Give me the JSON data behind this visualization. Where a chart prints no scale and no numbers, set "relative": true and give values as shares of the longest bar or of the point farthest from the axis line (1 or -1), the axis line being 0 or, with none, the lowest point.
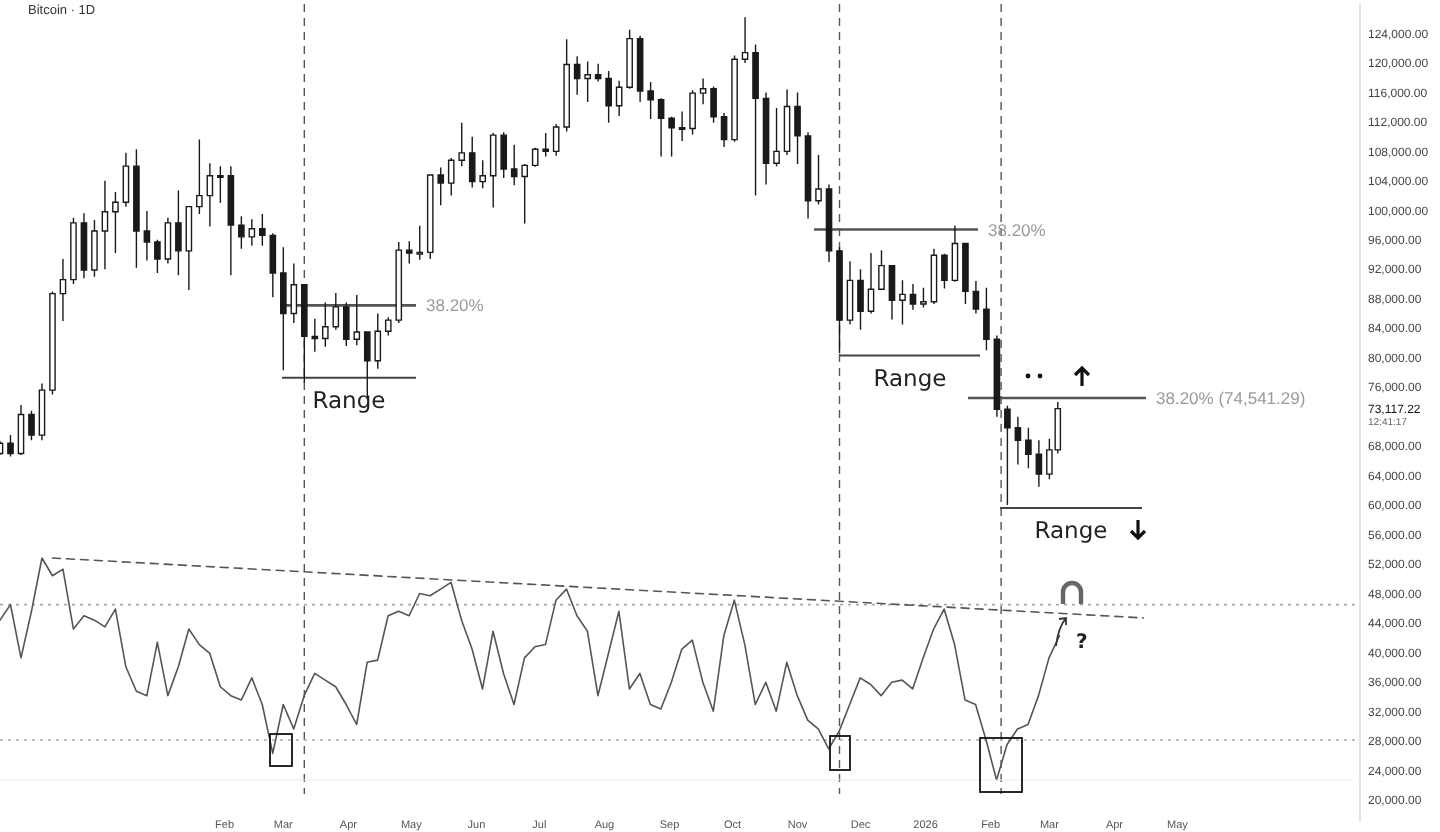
{
  "chart_data": [
    {
      "type": "candlestick",
      "title": "Bitcoin · 1D",
      "color": "#1a1a1a",
      "x": [
        "2024-10-17",
        "2024-10-22",
        "2024-10-27",
        "2024-11-01",
        "2024-11-06",
        "2024-11-11",
        "2024-11-16",
        "2024-11-21",
        "2024-11-26",
        "2024-12-01",
        "2024-12-06",
        "2024-12-11",
        "2024-12-16",
        "2024-12-21",
        "2024-12-26",
        "2024-12-31",
        "2025-01-05",
        "2025-01-10",
        "2025-01-15",
        "2025-01-20",
        "2025-01-25",
        "2025-01-30",
        "2025-02-04",
        "2025-02-09",
        "2025-02-14",
        "2025-02-19",
        "2025-02-24",
        "2025-03-01",
        "2025-03-06",
        "2025-03-11",
        "2025-03-16",
        "2025-03-21",
        "2025-03-26",
        "2025-03-31",
        "2025-04-05",
        "2025-04-10",
        "2025-04-15",
        "2025-04-20",
        "2025-04-25",
        "2025-04-30",
        "2025-05-05",
        "2025-05-10",
        "2025-05-15",
        "2025-05-20",
        "2025-05-25",
        "2025-05-30",
        "2025-06-04",
        "2025-06-09",
        "2025-06-14",
        "2025-06-19",
        "2025-06-24",
        "2025-06-29",
        "2025-07-04",
        "2025-07-09",
        "2025-07-14",
        "2025-07-19",
        "2025-07-24",
        "2025-07-29",
        "2025-08-03",
        "2025-08-08",
        "2025-08-13",
        "2025-08-18",
        "2025-08-23",
        "2025-08-28",
        "2025-09-02",
        "2025-09-07",
        "2025-09-12",
        "2025-09-17",
        "2025-09-22",
        "2025-09-27",
        "2025-10-02",
        "2025-10-07",
        "2025-10-12",
        "2025-10-17",
        "2025-10-22",
        "2025-10-27",
        "2025-11-01",
        "2025-11-06",
        "2025-11-11",
        "2025-11-16",
        "2025-11-21",
        "2025-11-26",
        "2025-12-01",
        "2025-12-06",
        "2025-12-11",
        "2025-12-16",
        "2025-12-21",
        "2025-12-26",
        "2025-12-31",
        "2026-01-05",
        "2026-01-10",
        "2026-01-15",
        "2026-01-20",
        "2026-01-25",
        "2026-01-30",
        "2026-02-04",
        "2026-02-09",
        "2026-02-14",
        "2026-02-19",
        "2026-02-24",
        "2026-03-01",
        "2026-03-05"
      ],
      "ohlc": [
        [
          67000,
          68700,
          66800,
          68400
        ],
        [
          68400,
          69500,
          66600,
          67000
        ],
        [
          67000,
          73600,
          66800,
          72300
        ],
        [
          72300,
          72800,
          68800,
          69500
        ],
        [
          69500,
          76500,
          68800,
          75600
        ],
        [
          75600,
          89000,
          75000,
          88700
        ],
        [
          88700,
          93400,
          85000,
          90600
        ],
        [
          90600,
          99000,
          90000,
          98300
        ],
        [
          98300,
          99600,
          90800,
          91900
        ],
        [
          91900,
          98700,
          91000,
          97200
        ],
        [
          97200,
          104000,
          92000,
          99800
        ],
        [
          99800,
          102500,
          94200,
          101100
        ],
        [
          101100,
          107800,
          100500,
          106000
        ],
        [
          106000,
          108300,
          92200,
          97200
        ],
        [
          97200,
          99900,
          93200,
          95700
        ],
        [
          95700,
          96000,
          91500,
          93400
        ],
        [
          93400,
          99000,
          92800,
          98300
        ],
        [
          98300,
          102700,
          91200,
          94500
        ],
        [
          94500,
          100600,
          89200,
          100500
        ],
        [
          100500,
          109600,
          99500,
          102000
        ],
        [
          102000,
          106400,
          97800,
          104700
        ],
        [
          104700,
          106000,
          101000,
          104700
        ],
        [
          104700,
          106000,
          91200,
          98000
        ],
        [
          98000,
          99200,
          94800,
          96400
        ],
        [
          96400,
          98800,
          95200,
          97500
        ],
        [
          97500,
          99500,
          95200,
          96600
        ],
        [
          96600,
          96900,
          88200,
          91500
        ],
        [
          91500,
          95000,
          78300,
          86000
        ],
        [
          86000,
          92800,
          84700,
          89900
        ],
        [
          89900,
          90000,
          76600,
          82900
        ],
        [
          82900,
          85300,
          80800,
          82600
        ],
        [
          82600,
          87500,
          81500,
          84200
        ],
        [
          84200,
          88800,
          83800,
          86900
        ],
        [
          86900,
          87500,
          81600,
          82500
        ],
        [
          82500,
          88500,
          81700,
          83500
        ],
        [
          83500,
          83600,
          74500,
          79600
        ],
        [
          79600,
          86000,
          78500,
          83600
        ],
        [
          83600,
          85500,
          83000,
          85100
        ],
        [
          85100,
          95700,
          84700,
          94600
        ],
        [
          94600,
          95800,
          92800,
          94200
        ],
        [
          94200,
          97900,
          93300,
          94300
        ],
        [
          94300,
          104900,
          93400,
          104800
        ],
        [
          104800,
          105800,
          100700,
          103700
        ],
        [
          103700,
          107100,
          102000,
          106800
        ],
        [
          106800,
          111900,
          106000,
          107800
        ],
        [
          107800,
          110000,
          103100,
          103900
        ],
        [
          103900,
          106800,
          103000,
          104700
        ],
        [
          104700,
          110500,
          100400,
          110200
        ],
        [
          110200,
          110600,
          104400,
          105600
        ],
        [
          105600,
          108900,
          103400,
          104600
        ],
        [
          104600,
          106300,
          98200,
          106100
        ],
        [
          106100,
          108500,
          105900,
          108300
        ],
        [
          108300,
          110500,
          107300,
          108000
        ],
        [
          108000,
          111700,
          107400,
          111300
        ],
        [
          111300,
          123200,
          110700,
          119800
        ],
        [
          119800,
          120900,
          115700,
          117900
        ],
        [
          117900,
          120200,
          114700,
          118400
        ],
        [
          118400,
          119900,
          117500,
          117900
        ],
        [
          117900,
          118900,
          111900,
          114200
        ],
        [
          114200,
          117600,
          112800,
          116700
        ],
        [
          116700,
          124500,
          116500,
          123300
        ],
        [
          123300,
          123700,
          114700,
          116200
        ],
        [
          116200,
          117400,
          112400,
          115000
        ],
        [
          115000,
          115200,
          107300,
          112500
        ],
        [
          112500,
          112700,
          107300,
          111200
        ],
        [
          111200,
          113400,
          109400,
          111100
        ],
        [
          111100,
          116300,
          110300,
          115900
        ],
        [
          115900,
          117900,
          114400,
          116500
        ],
        [
          116500,
          116800,
          111900,
          112700
        ],
        [
          112700,
          113200,
          108600,
          109600
        ],
        [
          109600,
          121000,
          109300,
          120500
        ],
        [
          120500,
          126200,
          120000,
          121400
        ],
        [
          121400,
          122500,
          102000,
          115200
        ],
        [
          115200,
          116000,
          103500,
          106400
        ],
        [
          106400,
          113900,
          106000,
          108000
        ],
        [
          108000,
          116400,
          107500,
          114100
        ],
        [
          114100,
          116000,
          106300,
          110100
        ],
        [
          110100,
          110600,
          98900,
          101300
        ],
        [
          101300,
          107500,
          100800,
          102900
        ],
        [
          102900,
          103500,
          93000,
          94500
        ],
        [
          94500,
          95000,
          80600,
          85100
        ],
        [
          85100,
          93100,
          84500,
          90500
        ],
        [
          90500,
          92000,
          83800,
          86300
        ],
        [
          86300,
          94200,
          86000,
          89300
        ],
        [
          89300,
          94600,
          89200,
          92500
        ],
        [
          92500,
          92600,
          85200,
          87800
        ],
        [
          87800,
          90500,
          84500,
          88600
        ],
        [
          88600,
          90000,
          86500,
          87300
        ],
        [
          87300,
          89500,
          86800,
          87600
        ],
        [
          87600,
          94800,
          87300,
          93900
        ],
        [
          93900,
          94100,
          89400,
          90500
        ],
        [
          90500,
          97900,
          90300,
          95500
        ],
        [
          95500,
          95600,
          87300,
          89000
        ],
        [
          89000,
          90400,
          86000,
          86600
        ],
        [
          86600,
          89500,
          81000,
          82500
        ],
        [
          82500,
          83000,
          72000,
          73000
        ],
        [
          73000,
          73500,
          60000,
          70500
        ],
        [
          70500,
          72000,
          65500,
          68800
        ],
        [
          68800,
          70500,
          65000,
          66900
        ],
        [
          66900,
          68800,
          62500,
          64200
        ],
        [
          64200,
          69000,
          63500,
          67500
        ],
        [
          67500,
          74000,
          67000,
          73100
        ]
      ],
      "xlim": [
        "2024-10-17",
        "2026-07-27"
      ],
      "xticks": [
        {
          "value": "2025-02-01",
          "label": "Feb"
        },
        {
          "value": "2025-03-01",
          "label": "Mar"
        },
        {
          "value": "2025-04-01",
          "label": "Apr"
        },
        {
          "value": "2025-05-01",
          "label": "May"
        },
        {
          "value": "2025-06-01",
          "label": "Jun"
        },
        {
          "value": "2025-07-01",
          "label": "Jul"
        },
        {
          "value": "2025-08-01",
          "label": "Aug"
        },
        {
          "value": "2025-09-01",
          "label": "Sep"
        },
        {
          "value": "2025-10-01",
          "label": "Oct"
        },
        {
          "value": "2025-11-01",
          "label": "Nov"
        },
        {
          "value": "2025-12-01",
          "label": "Dec"
        },
        {
          "value": "2026-01-01",
          "label": "2026"
        },
        {
          "value": "2026-02-01",
          "label": "Feb"
        },
        {
          "value": "2026-03-01",
          "label": "Mar"
        },
        {
          "value": "2026-04-01",
          "label": "Apr"
        },
        {
          "value": "2026-05-01",
          "label": "May"
        }
      ],
      "ylim": [
        17000,
        128000
      ],
      "yticks": [
        {
          "value": 20000,
          "label": "20,000.00"
        },
        {
          "value": 24000,
          "label": "24,000.00"
        },
        {
          "value": 28000,
          "label": "28,000.00"
        },
        {
          "value": 32000,
          "label": "32,000.00"
        },
        {
          "value": 36000,
          "label": "36,000.00"
        },
        {
          "value": 40000,
          "label": "40,000.00"
        },
        {
          "value": 44000,
          "label": "44,000.00"
        },
        {
          "value": 48000,
          "label": "48,000.00"
        },
        {
          "value": 52000,
          "label": "52,000.00"
        },
        {
          "value": 56000,
          "label": "56,000.00"
        },
        {
          "value": 60000,
          "label": "60,000.00"
        },
        {
          "value": 64000,
          "label": "64,000.00"
        },
        {
          "value": 68000,
          "label": "68,000.00"
        },
        {
          "value": 76000,
          "label": "76,000.00"
        },
        {
          "value": 80000,
          "label": "80,000.00"
        },
        {
          "value": 84000,
          "label": "84,000.00"
        },
        {
          "value": 88000,
          "label": "88,000.00"
        },
        {
          "value": 92000,
          "label": "92,000.00"
        },
        {
          "value": 96000,
          "label": "96,000.00"
        },
        {
          "value": 100000,
          "label": "100,000.00"
        },
        {
          "value": 104000,
          "label": "104,000.00"
        },
        {
          "value": 108000,
          "label": "108,000.00"
        },
        {
          "value": 112000,
          "label": "112,000.00"
        },
        {
          "value": 116000,
          "label": "116,000.00"
        },
        {
          "value": 120000,
          "label": "120,000.00"
        },
        {
          "value": 124000,
          "label": "124,000.00"
        }
      ],
      "ref_lines": [
        {
          "axis": "x",
          "value": "2025-03-11",
          "line_style": "dashed",
          "color": "#555555"
        },
        {
          "axis": "x",
          "value": "2025-11-21",
          "line_style": "dashed",
          "color": "#555555"
        },
        {
          "axis": "x",
          "value": "2026-02-06",
          "line_style": "dashed",
          "color": "#555555"
        },
        {
          "axis": "y",
          "value": 87100,
          "line_style": "solid",
          "color": "#555555"
        },
        {
          "axis": "y",
          "value": 77300,
          "label": "Range",
          "line_style": "solid",
          "color": "#444444"
        },
        {
          "axis": "y",
          "value": 97400,
          "line_style": "solid",
          "color": "#555555"
        },
        {
          "axis": "y",
          "value": 80300,
          "label": "Range",
          "line_style": "solid",
          "color": "#444444"
        },
        {
          "axis": "y",
          "value": 74541.29,
          "label": "38.20% (74,541.29)",
          "line_style": "solid",
          "color": "#555555"
        },
        {
          "axis": "y",
          "value": 59600,
          "label": "Range",
          "line_style": "solid",
          "color": "#444444"
        }
      ],
      "annotations": [
        "38.20%",
        "38.20%",
        "73,117.22",
        "12:41:17",
        "?"
      ]
    },
    {
      "type": "line",
      "relative": true,
      "categories": [
        null,
        null,
        null,
        null,
        null,
        null,
        null,
        null,
        null,
        null,
        null,
        null,
        null,
        null,
        null,
        null,
        null,
        null,
        null,
        null,
        null,
        null,
        null,
        null,
        null,
        null,
        null,
        null,
        null,
        null,
        null,
        null,
        null,
        null,
        null,
        null,
        null,
        null,
        null,
        null,
        null,
        null,
        null,
        null,
        null,
        null,
        null,
        null,
        null,
        null,
        null,
        null,
        null,
        null,
        null,
        null,
        null,
        null,
        null,
        null,
        null,
        null,
        null,
        null,
        null,
        null,
        null,
        null,
        null,
        null,
        null,
        null,
        null,
        null,
        null,
        null,
        null,
        null,
        null,
        null,
        null,
        null,
        null,
        null,
        null,
        null,
        null,
        null,
        null,
        null,
        null,
        null,
        null,
        null,
        null,
        null,
        null,
        null,
        null,
        null,
        null,
        null,
        null,
        null,
        null,
        null,
        null,
        null,
        null,
        null,
        null,
        null,
        null,
        null,
        null,
        null,
        null,
        null,
        null,
        null,
        null,
        null,
        null,
        null,
        null,
        null,
        null,
        null,
        null,
        null
      ],
      "series": [
        {
          "color": "#555555",
          "line_style": "solid",
          "values": [
            0.72,
            0.79,
            0.55,
            0.76,
            1.0,
            0.92,
            0.95,
            0.68,
            0.74,
            0.72,
            0.69,
            0.77,
            0.51,
            0.4,
            0.38,
            0.62,
            0.38,
            0.51,
            0.68,
            0.61,
            0.57,
            0.42,
            0.38,
            0.36,
            0.46,
            0.34,
            0.12,
            0.34,
            0.23,
            0.38,
            0.48,
            0.45,
            0.42,
            0.34,
            0.25,
            0.53,
            0.54,
            0.74,
            0.76,
            0.74,
            0.84,
            0.83,
            0.86,
            0.89,
            0.72,
            0.59,
            0.41,
            0.67,
            0.48,
            0.34,
            0.55,
            0.6,
            0.61,
            0.81,
            0.86,
            0.74,
            0.67,
            0.38,
            0.57,
            0.76,
            0.41,
            0.48,
            0.34,
            0.32,
            0.44,
            0.59,
            0.63,
            0.44,
            0.31,
            0.65,
            0.81,
            0.61,
            0.34,
            0.44,
            0.31,
            0.53,
            0.38,
            0.27,
            0.23,
            0.14,
            0.22,
            0.34,
            0.46,
            0.43,
            0.38,
            0.44,
            0.45,
            0.41,
            0.55,
            0.68,
            0.77,
            0.61,
            0.36,
            0.34,
            0.18,
            0.0,
            0.16,
            0.23,
            0.25,
            0.38,
            0.55,
            0.65,
            null,
            null,
            null,
            null,
            null,
            null,
            null,
            null,
            null,
            null,
            null,
            null,
            null,
            null,
            null,
            null,
            null,
            null,
            null,
            null,
            null,
            null,
            null,
            null,
            null,
            null,
            null,
            null
          ]
        },
        {
          "color": "#555555",
          "line_style": "dashed",
          "values": [
            null,
            null,
            null,
            null,
            null,
            1.0,
            null,
            null,
            null,
            null,
            null,
            null,
            null,
            null,
            null,
            null,
            null,
            null,
            null,
            null,
            null,
            null,
            null,
            null,
            null,
            null,
            null,
            null,
            null,
            null,
            null,
            null,
            null,
            null,
            null,
            null,
            null,
            null,
            null,
            null,
            null,
            null,
            null,
            null,
            null,
            null,
            null,
            null,
            null,
            null,
            null,
            null,
            null,
            null,
            null,
            null,
            null,
            null,
            null,
            null,
            null,
            null,
            null,
            null,
            null,
            null,
            null,
            null,
            null,
            null,
            null,
            null,
            null,
            null,
            null,
            null,
            null,
            null,
            null,
            null,
            null,
            null,
            null,
            null,
            null,
            null,
            null,
            null,
            null,
            null,
            null,
            null,
            null,
            null,
            null,
            null,
            null,
            null,
            null,
            null,
            null,
            null,
            null,
            null,
            null,
            null,
            null,
            null,
            null,
            0.73,
            null,
            null,
            null,
            null,
            null,
            null,
            null,
            null,
            null,
            null,
            null,
            null,
            null,
            null,
            null,
            null,
            null,
            null,
            null,
            null
          ]
        }
      ],
      "ref_lines": [
        {
          "axis": "y",
          "value": 0.79,
          "line_style": "dotted",
          "color": "#aaaaaa"
        },
        {
          "axis": "y",
          "value": 0.18,
          "line_style": "dotted",
          "color": "#aaaaaa"
        }
      ]
    }
  ]
}
